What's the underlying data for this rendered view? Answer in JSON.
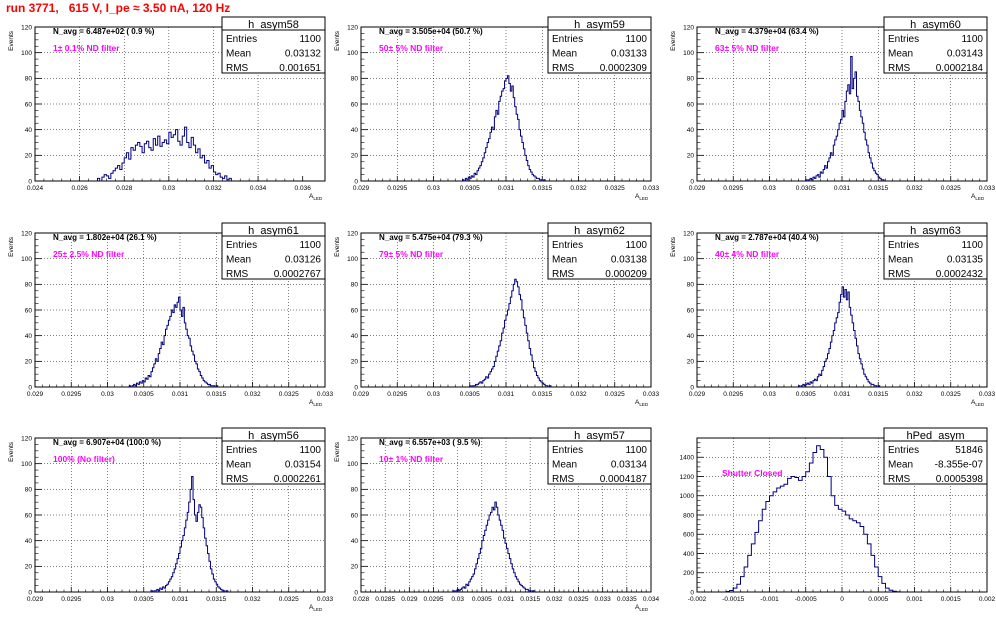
{
  "page": {
    "title": "run 3771,   615 V, I_pe ≈ 3.50 nA, 120 Hz"
  },
  "colors": {
    "histogram_line": "#000080",
    "title": "#ff0000",
    "annotation": "#ff00ff",
    "grid": "#000000"
  },
  "chart_data": [
    {
      "type": "histogram",
      "name": "h_asym58",
      "title": "N_avg = 6.487e+02 ( 0.9 %)",
      "annotation": "1± 0.1% ND filter",
      "stats": {
        "entries": "1100",
        "mean": "0.03132",
        "rms": "0.001651"
      },
      "ylabel": "Events",
      "xlabel": "A_LED",
      "xlim": [
        0.024,
        0.037
      ],
      "ylim": [
        0,
        120
      ],
      "xticks": [
        "0.024",
        "0.026",
        "0.028",
        "0.03",
        "0.032",
        "0.034",
        "0.036"
      ],
      "xtick_values": [
        0.024,
        0.026,
        0.028,
        0.03,
        0.032,
        0.034,
        0.036
      ],
      "yticks": [
        "0",
        "20",
        "40",
        "60",
        "80",
        "100",
        "120"
      ],
      "yticks_values": [
        0,
        20,
        40,
        60,
        80,
        100,
        120
      ],
      "grid": true,
      "stats_box": "top-right",
      "bins": {
        "xmin": 0.0268,
        "width": 0.0001,
        "counts": [
          2,
          0,
          3,
          5,
          4,
          2,
          6,
          8,
          10,
          12,
          9,
          14,
          18,
          22,
          17,
          26,
          24,
          28,
          30,
          27,
          22,
          29,
          31,
          26,
          24,
          33,
          28,
          35,
          27,
          30,
          32,
          29,
          38,
          34,
          36,
          40,
          31,
          28,
          35,
          42,
          30,
          26,
          34,
          28,
          22,
          25,
          18,
          20,
          14,
          16,
          10,
          12,
          7,
          5,
          6,
          3,
          2,
          4,
          1,
          2
        ]
      }
    },
    {
      "type": "histogram",
      "name": "h_asym59",
      "title": "N_avg = 3.505e+04 (50.7 %)",
      "annotation": "50± 5% ND filter",
      "stats": {
        "entries": "1100",
        "mean": "0.03133",
        "rms": "0.0002309"
      },
      "ylabel": "Events",
      "xlabel": "A_LED",
      "xlim": [
        0.029,
        0.033
      ],
      "ylim": [
        0,
        120
      ],
      "xticks": [
        "0.029",
        "0.0295",
        "0.03",
        "0.0305",
        "0.031",
        "0.0315",
        "0.032",
        "0.0325",
        "0.033"
      ],
      "xtick_values": [
        0.029,
        0.0295,
        0.03,
        0.0305,
        0.031,
        0.0315,
        0.032,
        0.0325,
        0.033
      ],
      "yticks": [
        "0",
        "20",
        "40",
        "60",
        "80",
        "100",
        "120"
      ],
      "yticks_values": [
        0,
        20,
        40,
        60,
        80,
        100,
        120
      ],
      "grid": true,
      "stats_box": "top-right",
      "bins": {
        "xmin": 0.0304,
        "width": 2e-05,
        "counts": [
          1,
          0,
          2,
          1,
          3,
          2,
          4,
          3,
          6,
          5,
          8,
          10,
          12,
          15,
          18,
          22,
          26,
          30,
          33,
          38,
          42,
          40,
          50,
          55,
          52,
          62,
          66,
          70,
          72,
          78,
          80,
          82,
          76,
          70,
          74,
          65,
          58,
          52,
          48,
          40,
          35,
          30,
          25,
          20,
          16,
          12,
          9,
          7,
          5,
          4,
          3,
          2,
          2,
          1,
          1,
          0,
          1
        ]
      }
    },
    {
      "type": "histogram",
      "name": "h_asym60",
      "title": "N_avg = 4.379e+04 (63.4 %)",
      "annotation": "63± 5% ND filter",
      "stats": {
        "entries": "1100",
        "mean": "0.03143",
        "rms": "0.0002184"
      },
      "ylabel": "Events",
      "xlabel": "A_LED",
      "xlim": [
        0.029,
        0.033
      ],
      "ylim": [
        0,
        120
      ],
      "xticks": [
        "0.029",
        "0.0295",
        "0.03",
        "0.0305",
        "0.031",
        "0.0315",
        "0.032",
        "0.0325",
        "0.033"
      ],
      "xtick_values": [
        0.029,
        0.0295,
        0.03,
        0.0305,
        0.031,
        0.0315,
        0.032,
        0.0325,
        0.033
      ],
      "yticks": [
        "0",
        "20",
        "40",
        "60",
        "80",
        "100",
        "120"
      ],
      "yticks_values": [
        0,
        20,
        40,
        60,
        80,
        100,
        120
      ],
      "grid": true,
      "stats_box": "top-right",
      "bins": {
        "xmin": 0.0305,
        "width": 2e-05,
        "counts": [
          1,
          0,
          1,
          2,
          1,
          3,
          2,
          4,
          5,
          3,
          7,
          6,
          9,
          12,
          10,
          15,
          18,
          22,
          20,
          28,
          32,
          35,
          40,
          45,
          48,
          55,
          50,
          62,
          70,
          75,
          68,
          97,
          72,
          80,
          85,
          66,
          62,
          55,
          50,
          45,
          38,
          32,
          28,
          22,
          18,
          14,
          10,
          8,
          6,
          5,
          3,
          2,
          1,
          1
        ]
      }
    },
    {
      "type": "histogram",
      "name": "h_asym61",
      "title": "N_avg = 1.802e+04 (26.1 %)",
      "annotation": "25± 2.5% ND filter",
      "stats": {
        "entries": "1100",
        "mean": "0.03126",
        "rms": "0.0002767"
      },
      "ylabel": "Events",
      "xlabel": "A_LED",
      "xlim": [
        0.029,
        0.033
      ],
      "ylim": [
        0,
        120
      ],
      "xticks": [
        "0.029",
        "0.0295",
        "0.03",
        "0.0305",
        "0.031",
        "0.0315",
        "0.032",
        "0.0325",
        "0.033"
      ],
      "xtick_values": [
        0.029,
        0.0295,
        0.03,
        0.0305,
        0.031,
        0.0315,
        0.032,
        0.0325,
        0.033
      ],
      "yticks": [
        "0",
        "20",
        "40",
        "60",
        "80",
        "100",
        "120"
      ],
      "yticks_values": [
        0,
        20,
        40,
        60,
        80,
        100,
        120
      ],
      "grid": true,
      "stats_box": "top-right",
      "bins": {
        "xmin": 0.0303,
        "width": 2e-05,
        "counts": [
          1,
          0,
          1,
          2,
          1,
          3,
          2,
          4,
          3,
          5,
          4,
          7,
          6,
          9,
          8,
          12,
          15,
          18,
          22,
          20,
          26,
          30,
          35,
          33,
          40,
          45,
          48,
          52,
          55,
          60,
          58,
          64,
          62,
          66,
          70,
          60,
          55,
          62,
          50,
          45,
          40,
          38,
          32,
          28,
          25,
          20,
          18,
          14,
          12,
          9,
          7,
          5,
          4,
          3,
          2,
          2,
          1,
          1,
          1,
          0,
          1
        ]
      }
    },
    {
      "type": "histogram",
      "name": "h_asym62",
      "title": "N_avg = 5.475e+04 (79.3 %)",
      "annotation": "79± 5% ND filter",
      "stats": {
        "entries": "1100",
        "mean": "0.03138",
        "rms": "0.000209"
      },
      "ylabel": "Events",
      "xlabel": "A_LED",
      "xlim": [
        0.029,
        0.033
      ],
      "ylim": [
        0,
        120
      ],
      "xticks": [
        "0.029",
        "0.0295",
        "0.03",
        "0.0305",
        "0.031",
        "0.0315",
        "0.032",
        "0.0325",
        "0.033"
      ],
      "xtick_values": [
        0.029,
        0.0295,
        0.03,
        0.0305,
        0.031,
        0.0315,
        0.032,
        0.0325,
        0.033
      ],
      "yticks": [
        "0",
        "20",
        "40",
        "60",
        "80",
        "100",
        "120"
      ],
      "yticks_values": [
        0,
        20,
        40,
        60,
        80,
        100,
        120
      ],
      "grid": true,
      "stats_box": "top-right",
      "bins": {
        "xmin": 0.0305,
        "width": 2e-05,
        "counts": [
          1,
          0,
          1,
          1,
          2,
          2,
          3,
          4,
          3,
          5,
          6,
          8,
          7,
          10,
          12,
          14,
          16,
          20,
          24,
          28,
          32,
          36,
          42,
          46,
          52,
          56,
          60,
          65,
          70,
          75,
          80,
          84,
          82,
          78,
          72,
          68,
          60,
          54,
          48,
          42,
          36,
          30,
          25,
          20,
          15,
          12,
          9,
          7,
          5,
          4,
          3,
          2,
          1,
          1,
          0,
          1
        ]
      }
    },
    {
      "type": "histogram",
      "name": "h_asym63",
      "title": "N_avg = 2.787e+04 (40.4 %)",
      "annotation": "40± 4% ND filter",
      "stats": {
        "entries": "1100",
        "mean": "0.03135",
        "rms": "0.0002432"
      },
      "ylabel": "Events",
      "xlabel": "A_LED",
      "xlim": [
        0.029,
        0.033
      ],
      "ylim": [
        0,
        120
      ],
      "xticks": [
        "0.029",
        "0.0295",
        "0.03",
        "0.0305",
        "0.031",
        "0.0315",
        "0.032",
        "0.0325",
        "0.033"
      ],
      "xtick_values": [
        0.029,
        0.0295,
        0.03,
        0.0305,
        0.031,
        0.0315,
        0.032,
        0.0325,
        0.033
      ],
      "yticks": [
        "0",
        "20",
        "40",
        "60",
        "80",
        "100",
        "120"
      ],
      "yticks_values": [
        0,
        20,
        40,
        60,
        80,
        100,
        120
      ],
      "grid": true,
      "stats_box": "top-right",
      "bins": {
        "xmin": 0.0304,
        "width": 2e-05,
        "counts": [
          1,
          0,
          1,
          2,
          1,
          2,
          3,
          2,
          4,
          3,
          5,
          6,
          5,
          8,
          10,
          9,
          13,
          16,
          20,
          22,
          26,
          30,
          35,
          40,
          44,
          50,
          54,
          58,
          66,
          72,
          78,
          70,
          76,
          68,
          74,
          62,
          56,
          50,
          44,
          38,
          32,
          26,
          22,
          18,
          14,
          10,
          8,
          6,
          4,
          3,
          2,
          2,
          1,
          1,
          0,
          1
        ]
      }
    },
    {
      "type": "histogram",
      "name": "h_asym56",
      "title": "N_avg = 6.907e+04 (100.0 %)",
      "annotation": "100% (No filter)",
      "stats": {
        "entries": "1100",
        "mean": "0.03154",
        "rms": "0.0002261"
      },
      "ylabel": "Events",
      "xlabel": "A_LED",
      "xlim": [
        0.029,
        0.033
      ],
      "ylim": [
        0,
        120
      ],
      "xticks": [
        "0.029",
        "0.0295",
        "0.03",
        "0.0305",
        "0.031",
        "0.0315",
        "0.032",
        "0.0325",
        "0.033"
      ],
      "xtick_values": [
        0.029,
        0.0295,
        0.03,
        0.0305,
        0.031,
        0.0315,
        0.032,
        0.0325,
        0.033
      ],
      "yticks": [
        "0",
        "20",
        "40",
        "60",
        "80",
        "100",
        "120"
      ],
      "yticks_values": [
        0,
        20,
        40,
        60,
        80,
        100,
        120
      ],
      "grid": true,
      "stats_box": "top-right",
      "bins": {
        "xmin": 0.0306,
        "width": 2e-05,
        "counts": [
          1,
          0,
          1,
          1,
          2,
          1,
          3,
          2,
          4,
          3,
          5,
          6,
          8,
          10,
          12,
          15,
          18,
          22,
          26,
          30,
          35,
          40,
          44,
          50,
          56,
          62,
          70,
          80,
          90,
          72,
          60,
          55,
          62,
          68,
          66,
          58,
          50,
          42,
          36,
          30,
          24,
          18,
          14,
          10,
          8,
          6,
          4,
          3,
          2,
          1,
          1,
          0,
          1
        ]
      }
    },
    {
      "type": "histogram",
      "name": "h_asym57",
      "title": "N_avg = 6.557e+03 ( 9.5 %)",
      "annotation": "10± 1% ND filter",
      "stats": {
        "entries": "1100",
        "mean": "0.03134",
        "rms": "0.0004187"
      },
      "ylabel": "Events",
      "xlabel": "A_LED",
      "xlim": [
        0.028,
        0.034
      ],
      "ylim": [
        0,
        120
      ],
      "xticks": [
        "0.028",
        "0.0285",
        "0.029",
        "0.0295",
        "0.03",
        "0.0305",
        "0.031",
        "0.0315",
        "0.032",
        "0.0325",
        "0.033",
        "0.0335",
        "0.034"
      ],
      "xtick_values": [
        0.028,
        0.0285,
        0.029,
        0.0295,
        0.03,
        0.0305,
        0.031,
        0.0315,
        0.032,
        0.0325,
        0.033,
        0.0335,
        0.034
      ],
      "yticks": [
        "0",
        "20",
        "40",
        "60",
        "80",
        "100",
        "120"
      ],
      "yticks_values": [
        0,
        20,
        40,
        60,
        80,
        100,
        120
      ],
      "grid": true,
      "stats_box": "top-right",
      "bins": {
        "xmin": 0.0299,
        "width": 3e-05,
        "counts": [
          1,
          0,
          1,
          2,
          1,
          2,
          3,
          4,
          3,
          6,
          5,
          8,
          10,
          12,
          14,
          18,
          22,
          26,
          30,
          34,
          40,
          44,
          48,
          52,
          56,
          60,
          62,
          66,
          64,
          70,
          66,
          60,
          56,
          52,
          48,
          42,
          38,
          34,
          30,
          26,
          22,
          18,
          15,
          12,
          10,
          8,
          6,
          5,
          4,
          3,
          2,
          2,
          1,
          1,
          0,
          1
        ]
      }
    },
    {
      "type": "histogram",
      "name": "hPed_asym",
      "title": "",
      "annotation": "Shutter Closed",
      "stats": {
        "entries": "51846",
        "mean": "-8.355e-07",
        "rms": "0.0005398"
      },
      "ylabel": "",
      "xlabel": "",
      "xlim": [
        -0.002,
        0.002
      ],
      "ylim": [
        0,
        1600
      ],
      "xticks": [
        "-0.002",
        "-0.0015",
        "-0.001",
        "-0.0005",
        "0",
        "0.0005",
        "0.001",
        "0.0015",
        "0.002"
      ],
      "xtick_values": [
        -0.002,
        -0.0015,
        -0.001,
        -0.0005,
        0,
        0.0005,
        0.001,
        0.0015,
        0.002
      ],
      "yticks": [
        "0",
        "200",
        "400",
        "600",
        "800",
        "1000",
        "1200",
        "1400"
      ],
      "yticks_values": [
        0,
        200,
        400,
        600,
        800,
        1000,
        1200,
        1400
      ],
      "grid": true,
      "stats_box": "top-right",
      "bins": {
        "xmin": -0.0016,
        "width": 5e-05,
        "counts": [
          5,
          15,
          40,
          80,
          160,
          260,
          380,
          500,
          620,
          740,
          860,
          940,
          1000,
          1040,
          1080,
          1100,
          1120,
          1180,
          1200,
          1190,
          1160,
          1200,
          1250,
          1340,
          1450,
          1520,
          1480,
          1400,
          1200,
          1000,
          900,
          860,
          840,
          800,
          760,
          740,
          720,
          680,
          600,
          500,
          380,
          260,
          160,
          90,
          40,
          18,
          8,
          3
        ]
      }
    }
  ]
}
